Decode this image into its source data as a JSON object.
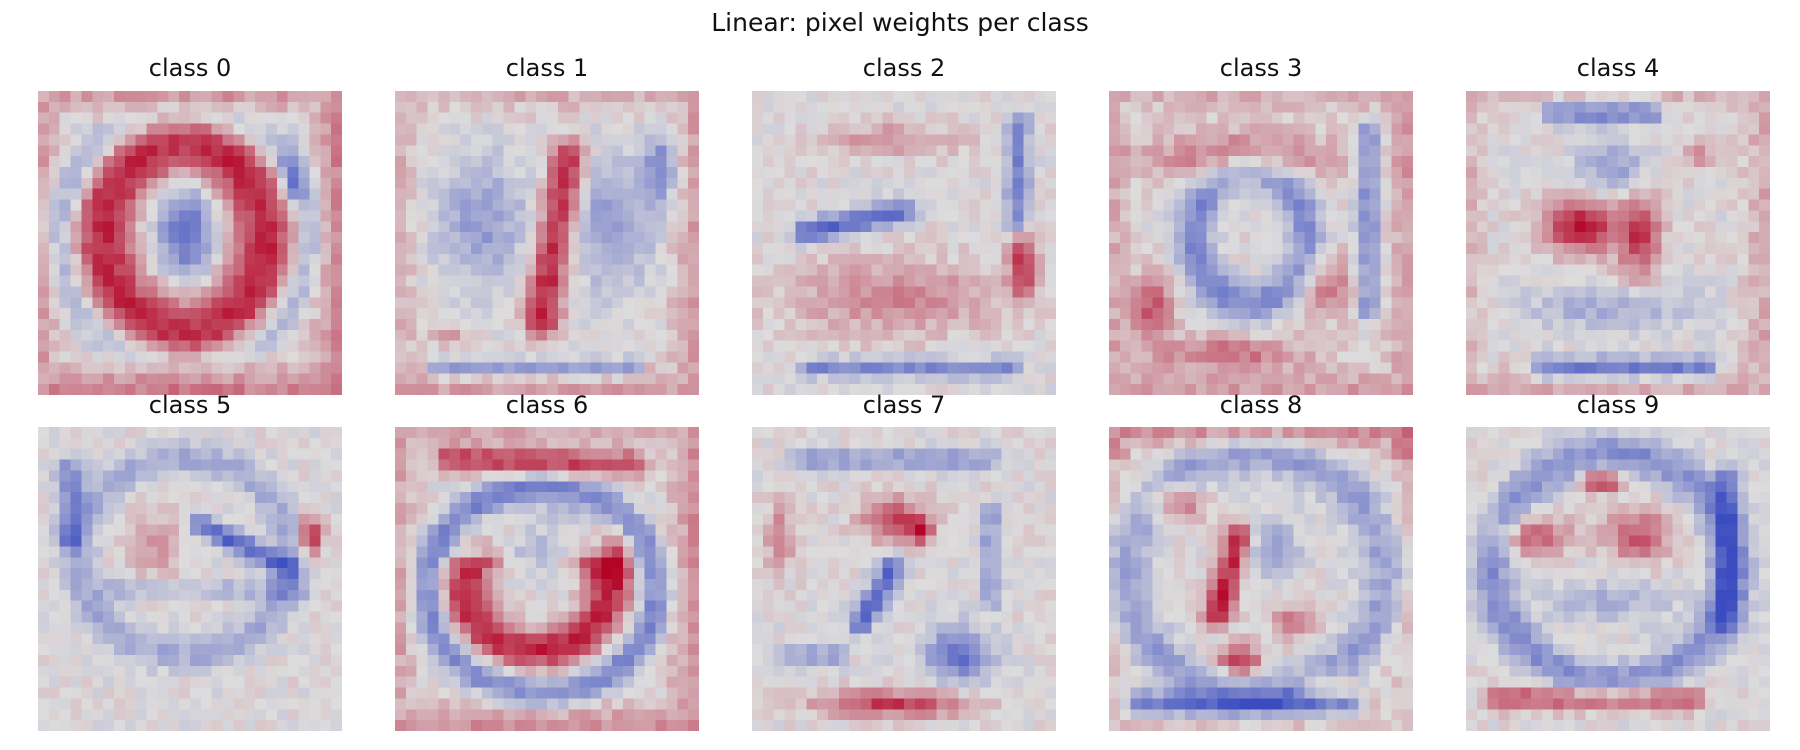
{
  "chart_data": {
    "type": "heatmap",
    "title": "Linear: pixel weights per class",
    "colormap": {
      "name": "coolwarm",
      "negative": "#3b4cc0",
      "neutral": "#dddcdc",
      "positive": "#b40426"
    },
    "grid": false,
    "axes_visible": false,
    "image_size": [
      28,
      28
    ],
    "panels": [
      {
        "label": "class 0"
      },
      {
        "label": "class 1"
      },
      {
        "label": "class 2"
      },
      {
        "label": "class 3"
      },
      {
        "label": "class 4"
      },
      {
        "label": "class 5"
      },
      {
        "label": "class 6"
      },
      {
        "label": "class 7"
      },
      {
        "label": "class 8"
      },
      {
        "label": "class 9"
      }
    ]
  }
}
